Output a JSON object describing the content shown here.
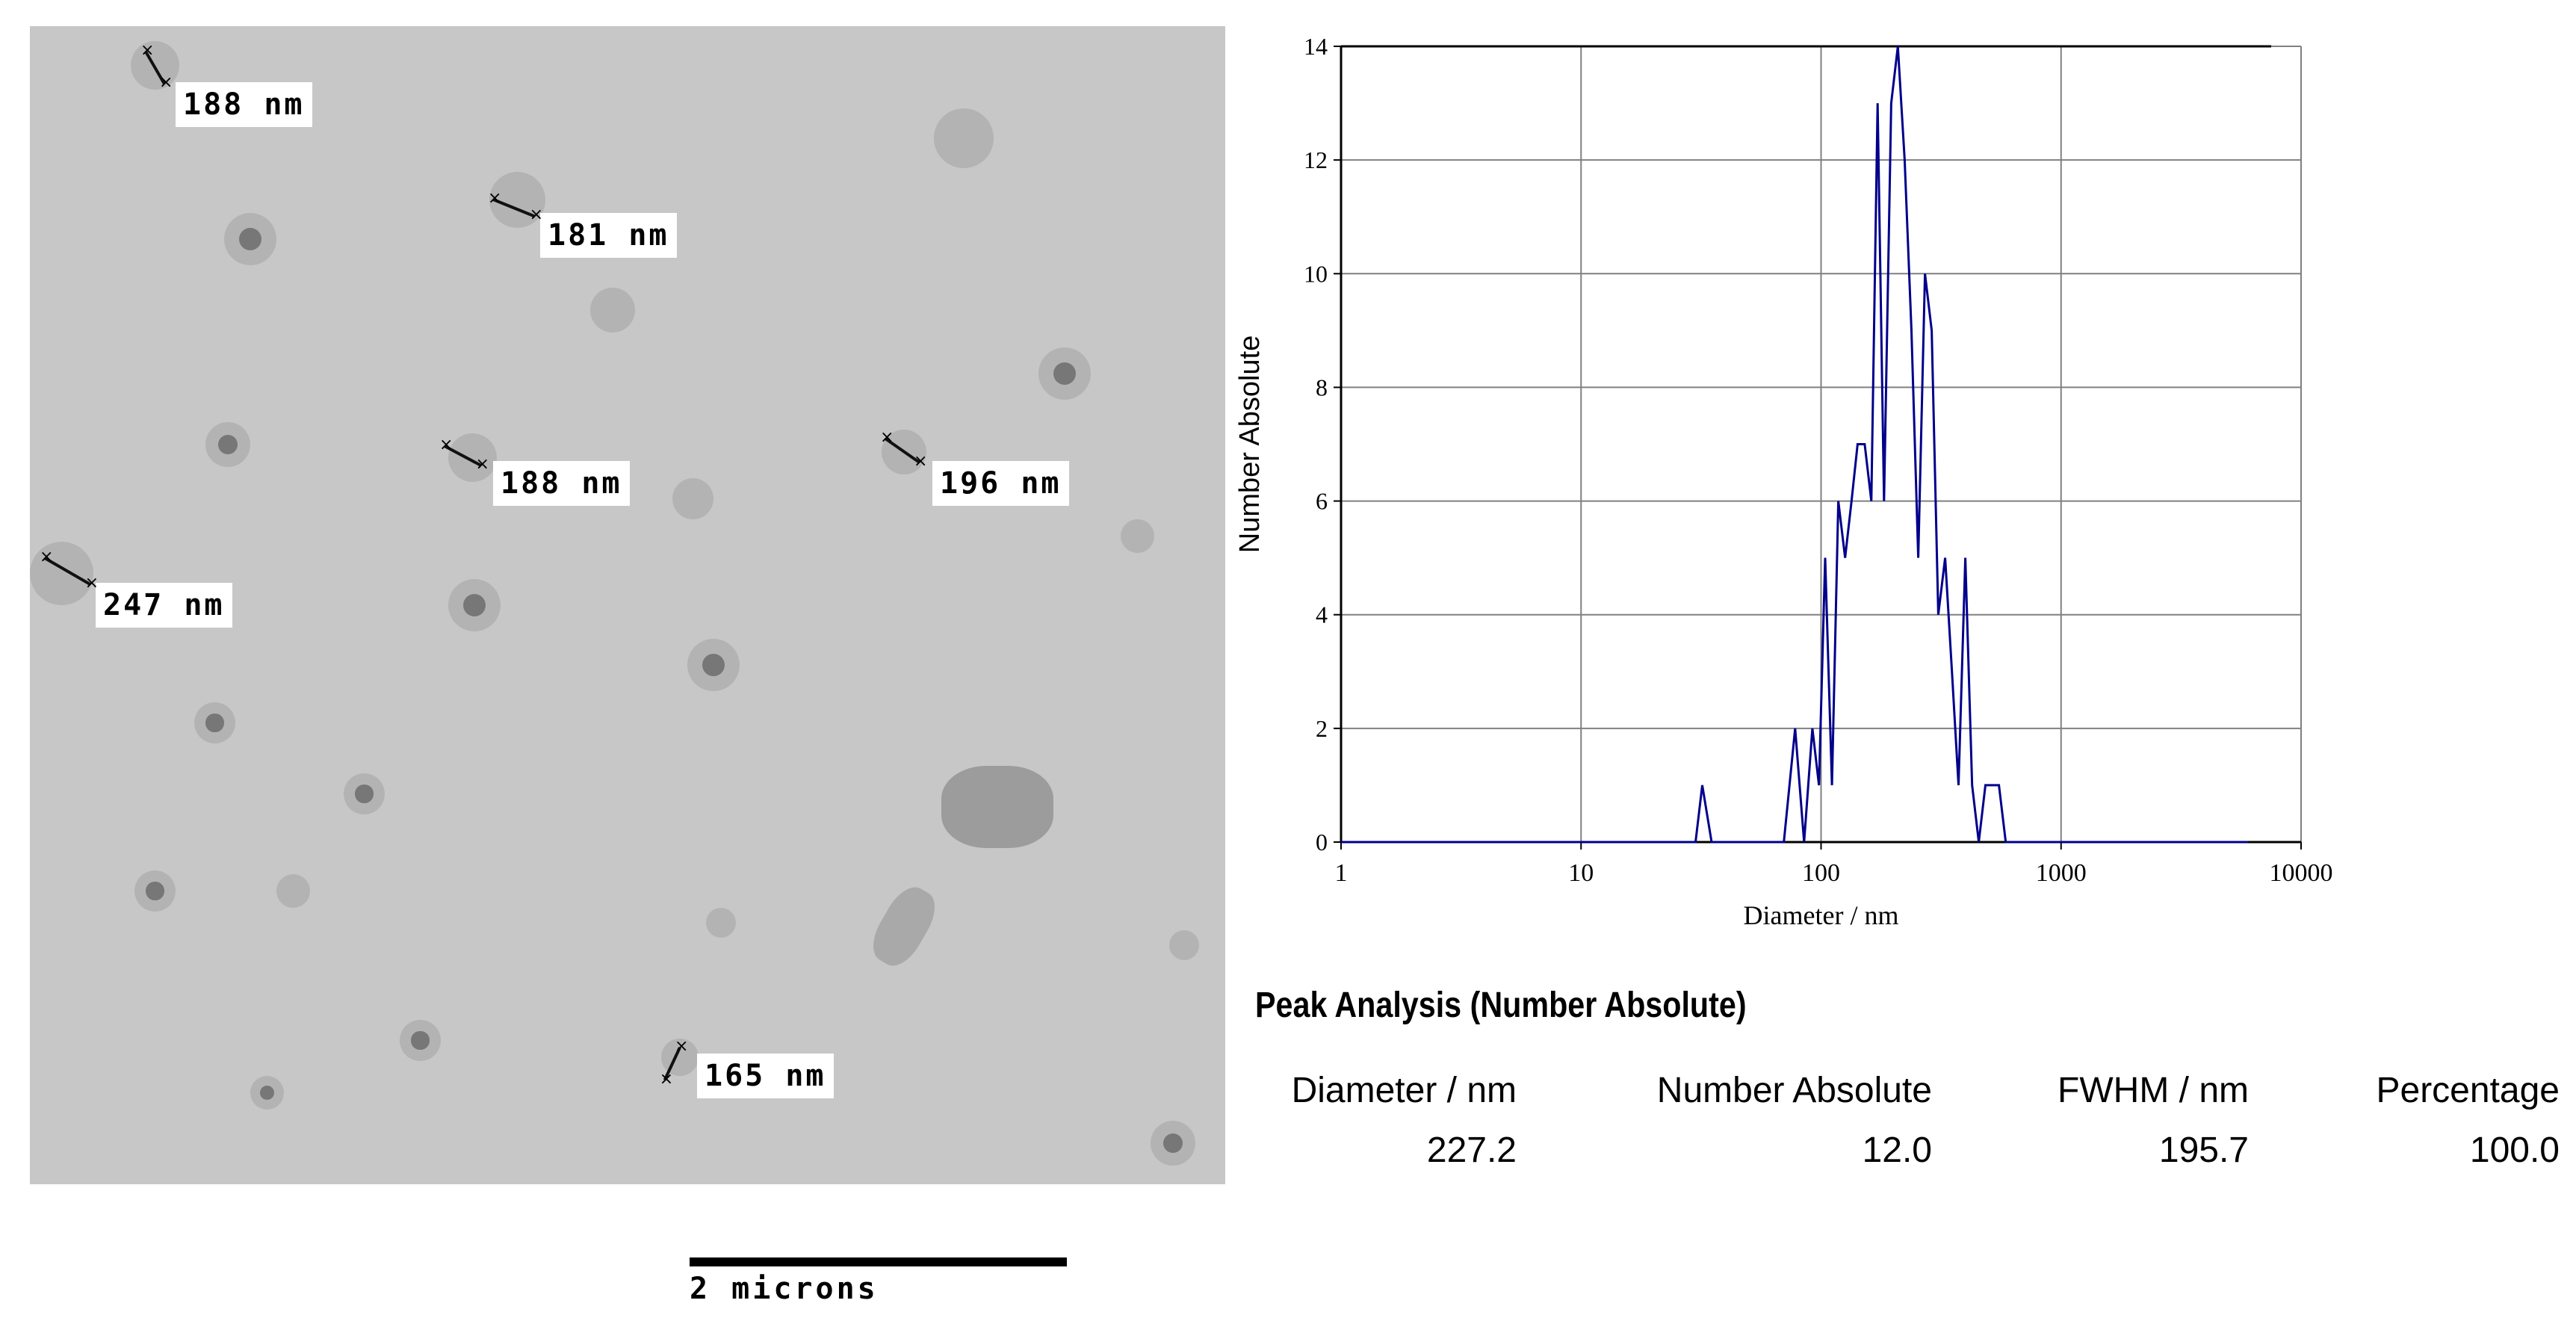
{
  "micrograph": {
    "measurements": [
      {
        "label": "188 nm"
      },
      {
        "label": "181 nm"
      },
      {
        "label": "188 nm"
      },
      {
        "label": "196 nm"
      },
      {
        "label": "247 nm"
      },
      {
        "label": "165 nm"
      }
    ],
    "scale_bar_label": "2 microns"
  },
  "chart_data": {
    "type": "line",
    "xlabel": "Diameter / nm",
    "ylabel": "Number Absolute",
    "x_scale": "log",
    "xlim": [
      1,
      10000
    ],
    "ylim": [
      0,
      14
    ],
    "x_ticks": [
      "1",
      "10",
      "100",
      "1000",
      "10000"
    ],
    "y_ticks": [
      "0",
      "2",
      "4",
      "6",
      "8",
      "10",
      "12",
      "14"
    ],
    "grid": true,
    "line_color": "#00008b",
    "series": [
      {
        "x": [
          1,
          30,
          32,
          35,
          70,
          78,
          85,
          92,
          98,
          104,
          111,
          118,
          126,
          134,
          142,
          152,
          162,
          172,
          183,
          196,
          209,
          223,
          238,
          254,
          271,
          289,
          308,
          329,
          351,
          374,
          399,
          426,
          454,
          484,
          517,
          551,
          588,
          627,
          669,
          6000
        ],
        "y": [
          0,
          0,
          1,
          0,
          0,
          2,
          0,
          2,
          1,
          5,
          1,
          6,
          5,
          6,
          7,
          7,
          6,
          13,
          6,
          13,
          14,
          12,
          9,
          5,
          10,
          9,
          4,
          5,
          3,
          1,
          5,
          1,
          0,
          1,
          1,
          1,
          0,
          0,
          0,
          0
        ]
      }
    ]
  },
  "peak_analysis": {
    "title": "Peak Analysis (Number Absolute)",
    "headers": [
      "Diameter / nm",
      "Number Absolute",
      "FWHM / nm",
      "Percentage"
    ],
    "row": [
      "227.2",
      "12.0",
      "195.7",
      "100.0"
    ]
  }
}
